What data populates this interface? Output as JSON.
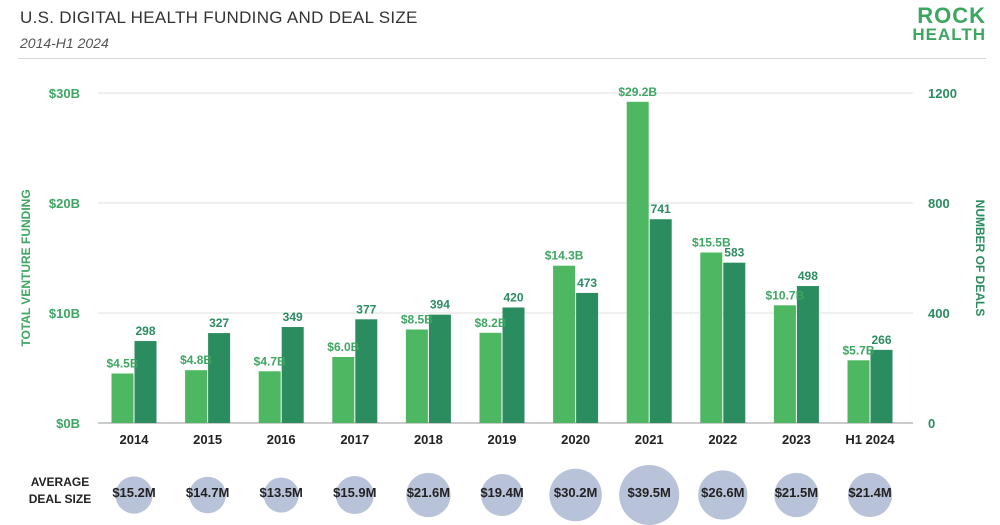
{
  "header": {
    "title": "U.S. DIGITAL HEALTH FUNDING AND DEAL SIZE",
    "subtitle": "2014-H1 2024",
    "logo_line1": "ROCK",
    "logo_line2": "HEALTH"
  },
  "colors": {
    "funding": "#4db861",
    "deals": "#2a8c5f",
    "bubble": "#b8c2d8",
    "grid": "#e2e2e2"
  },
  "chart_data": {
    "type": "bar",
    "title": "U.S. DIGITAL HEALTH FUNDING AND DEAL SIZE",
    "subtitle": "2014-H1 2024",
    "categories": [
      "2014",
      "2015",
      "2016",
      "2017",
      "2018",
      "2019",
      "2020",
      "2021",
      "2022",
      "2023",
      "H1 2024"
    ],
    "series": [
      {
        "name": "Total Venture Funding ($B)",
        "axis": "left",
        "values": [
          4.5,
          4.8,
          4.7,
          6.0,
          8.5,
          8.2,
          14.3,
          29.2,
          15.5,
          10.7,
          5.7
        ],
        "labels": [
          "$4.5B",
          "$4.8B",
          "$4.7B",
          "$6.0B",
          "$8.5B",
          "$8.2B",
          "$14.3B",
          "$29.2B",
          "$15.5B",
          "$10.7B",
          "$5.7B"
        ]
      },
      {
        "name": "Number of Deals",
        "axis": "right",
        "values": [
          298,
          327,
          349,
          377,
          394,
          420,
          473,
          741,
          583,
          498,
          266
        ],
        "labels": [
          "298",
          "327",
          "349",
          "377",
          "394",
          "420",
          "473",
          "741",
          "583",
          "498",
          "266"
        ]
      }
    ],
    "average_deal_size": {
      "title_line1": "AVERAGE",
      "title_line2": "DEAL SIZE",
      "values": [
        15.2,
        14.7,
        13.5,
        15.9,
        21.6,
        19.4,
        30.2,
        39.5,
        26.6,
        21.5,
        21.4
      ],
      "labels": [
        "$15.2M",
        "$14.7M",
        "$13.5M",
        "$15.9M",
        "$21.6M",
        "$19.4M",
        "$30.2M",
        "$39.5M",
        "$26.6M",
        "$21.5M",
        "$21.4M"
      ]
    },
    "ylabel_left": "TOTAL VENTURE FUNDING",
    "ylabel_right": "NUMBER OF DEALS",
    "ylim_left": [
      0,
      30
    ],
    "ylim_right": [
      0,
      1200
    ],
    "yticks_left": [
      "$0B",
      "$10B",
      "$20B",
      "$30B"
    ],
    "yticks_right": [
      "0",
      "400",
      "800",
      "1200"
    ],
    "grid": true
  }
}
